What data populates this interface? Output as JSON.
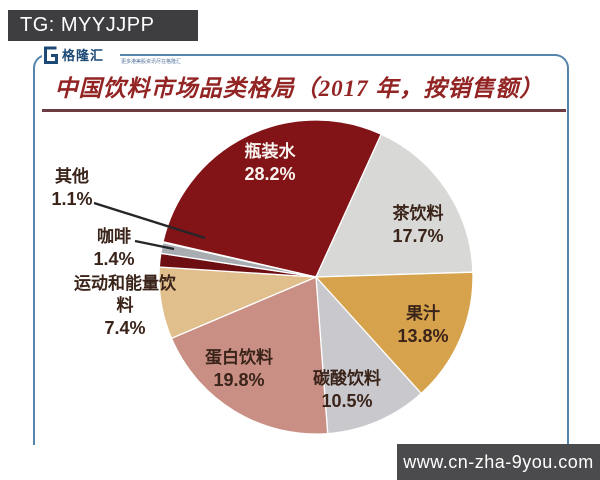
{
  "watermark_top": {
    "text": "TG: MYYJJPP",
    "bg_color": "#3e3e40",
    "text_color": "#ffffff"
  },
  "watermark_bottom": {
    "text": "www.cn-zha-9you.com",
    "bg_color": "#4b4b4d",
    "text_color": "#ffffff"
  },
  "logo": {
    "glyph": "G-mark",
    "name": "格隆汇",
    "tagline": "更多港美股资讯尽在格隆汇",
    "brand_color": "#1d4976",
    "frame_color": "#5584ad"
  },
  "title": {
    "text": "中国饮料市场品类格局（2017 年，按销售额）",
    "color": "#932424",
    "underline_color": "#6d3c42"
  },
  "chart_data": {
    "type": "pie",
    "title": "中国饮料市场品类格局（2017 年，按销售额）",
    "unit": "%",
    "start_angle_deg": 283,
    "clockwise": true,
    "legend": "labels placed on/next to slices",
    "slices": [
      {
        "id": "bottled-water",
        "label": "瓶装水",
        "pct_label": "28.2%",
        "value": 28.2,
        "color": "#821317",
        "label_color": "#f7f2ee",
        "label_inside": true
      },
      {
        "id": "tea-drinks",
        "label": "茶饮料",
        "pct_label": "17.7%",
        "value": 17.7,
        "color": "#d8d8d6",
        "label_color": "#3a241a",
        "label_inside": true
      },
      {
        "id": "juice",
        "label": "果汁",
        "pct_label": "13.8%",
        "value": 13.8,
        "color": "#d7a24c",
        "label_color": "#3a241a",
        "label_inside": true
      },
      {
        "id": "carbonated-drinks",
        "label": "碳酸饮料",
        "pct_label": "10.5%",
        "value": 10.5,
        "color": "#c8c8cd",
        "label_color": "#3a241a",
        "label_inside": true
      },
      {
        "id": "protein-drinks",
        "label": "蛋白饮料",
        "pct_label": "19.8%",
        "value": 19.8,
        "color": "#c98f84",
        "label_color": "#3a241a",
        "label_inside": true
      },
      {
        "id": "sports-energy-drinks",
        "label": "运动和能量饮料",
        "label_lines": [
          "运动和能量饮",
          "料"
        ],
        "pct_label": "7.4%",
        "value": 7.4,
        "color": "#e1bf8c",
        "label_color": "#3a241a",
        "label_inside": false
      },
      {
        "id": "coffee",
        "label": "咖啡",
        "pct_label": "1.4%",
        "value": 1.4,
        "color": "#6d0f12",
        "label_color": "#3a241a",
        "label_inside": false
      },
      {
        "id": "others",
        "label": "其他",
        "pct_label": "1.1%",
        "value": 1.1,
        "color": "#a9adb2",
        "label_color": "#3a241a",
        "label_inside": false
      }
    ]
  }
}
